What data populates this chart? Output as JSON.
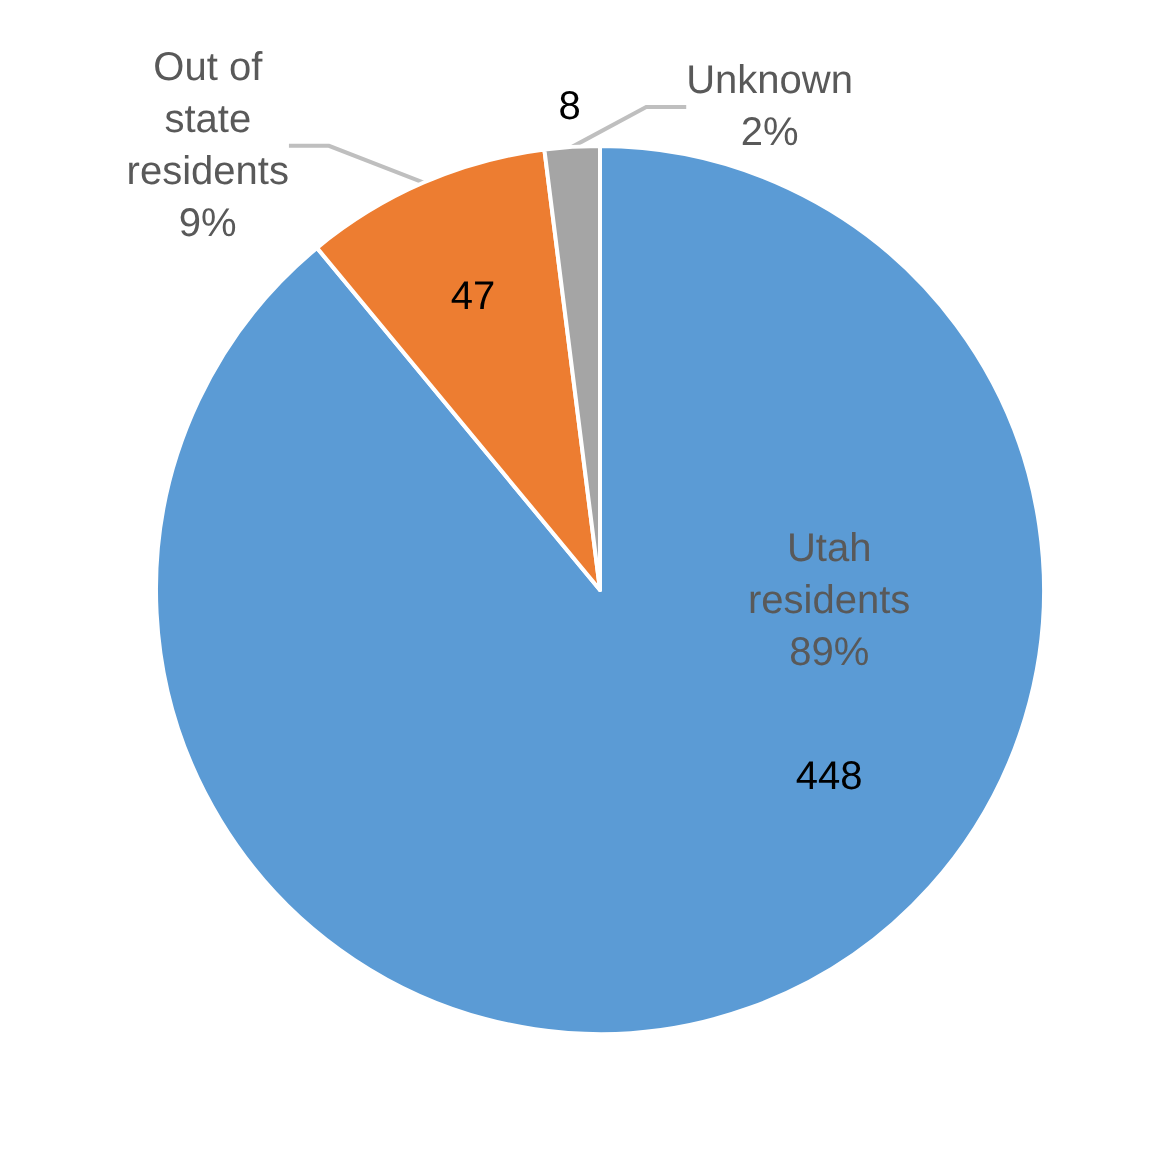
{
  "chart_data": {
    "type": "pie",
    "categories": [
      "Utah residents",
      "Out of state residents",
      "Unknown"
    ],
    "values": [
      89,
      9,
      2
    ],
    "colors": [
      "#5b9bd5",
      "#ed7d31",
      "#a5a5a5"
    ],
    "value_labels": [
      "89%",
      "9%",
      "2%"
    ],
    "data_labels": true,
    "annotations": [
      {
        "text": "448",
        "x": "Utah residents"
      },
      {
        "text": "47",
        "x": "Out of state residents"
      },
      {
        "text": "8",
        "x": "Unknown"
      }
    ],
    "legend": false
  }
}
